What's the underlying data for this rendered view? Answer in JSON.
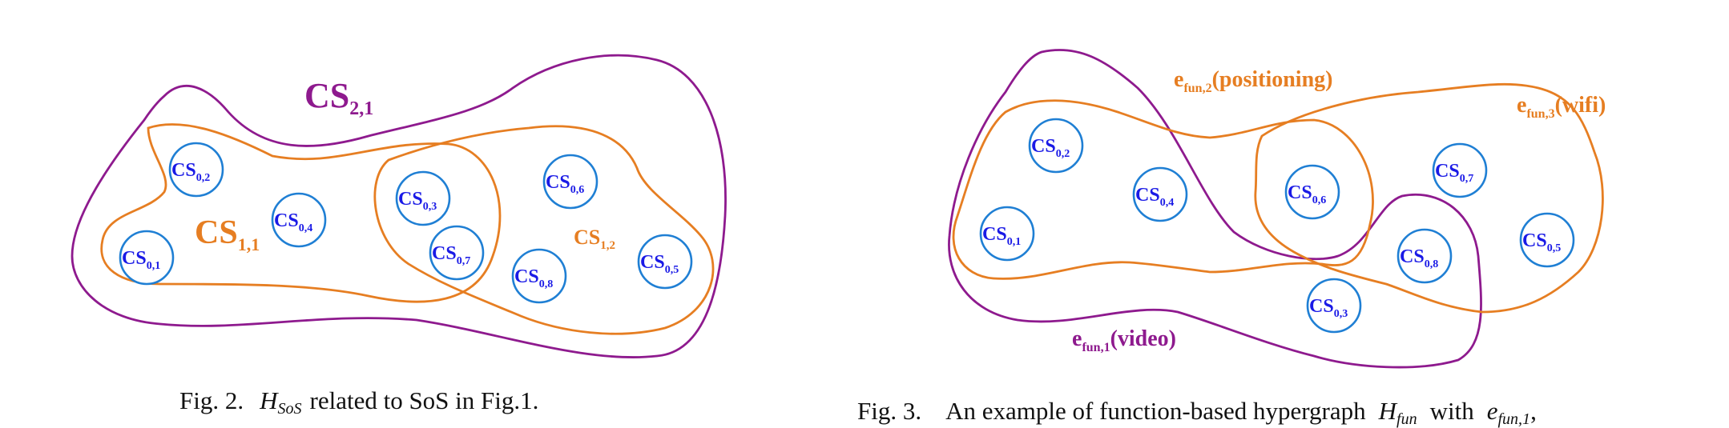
{
  "fig2": {
    "hyperedges": {
      "cs21": {
        "base": "CS",
        "sub": "2,1"
      },
      "cs11": {
        "base": "CS",
        "sub": "1,1"
      },
      "cs12": {
        "base": "CS",
        "sub": "1,2"
      }
    },
    "nodes": {
      "n1": {
        "base": "CS",
        "sub": "0,1"
      },
      "n2": {
        "base": "CS",
        "sub": "0,2"
      },
      "n3": {
        "base": "CS",
        "sub": "0,3"
      },
      "n4": {
        "base": "CS",
        "sub": "0,4"
      },
      "n5": {
        "base": "CS",
        "sub": "0,5"
      },
      "n6": {
        "base": "CS",
        "sub": "0,6"
      },
      "n7": {
        "base": "CS",
        "sub": "0,7"
      },
      "n8": {
        "base": "CS",
        "sub": "0,8"
      }
    },
    "caption": {
      "prefix": "Fig. 2.",
      "math_base": "H",
      "math_sub": "SoS",
      "text": "related to SoS in Fig.1."
    }
  },
  "fig3": {
    "hyperedges": {
      "video": {
        "base": "e",
        "sub": "fun,1",
        "name": "(video)"
      },
      "positioning": {
        "base": "e",
        "sub": "fun,2",
        "name": "(positioning)"
      },
      "wifi": {
        "base": "e",
        "sub": "fun,3",
        "name": "(wifi)"
      }
    },
    "nodes": {
      "n1": {
        "base": "CS",
        "sub": "0,1"
      },
      "n2": {
        "base": "CS",
        "sub": "0,2"
      },
      "n3": {
        "base": "CS",
        "sub": "0,3"
      },
      "n4": {
        "base": "CS",
        "sub": "0,4"
      },
      "n5": {
        "base": "CS",
        "sub": "0,5"
      },
      "n6": {
        "base": "CS",
        "sub": "0,6"
      },
      "n7": {
        "base": "CS",
        "sub": "0,7"
      },
      "n8": {
        "base": "CS",
        "sub": "0,8"
      }
    },
    "caption": {
      "prefix": "Fig. 3.",
      "text1": "An example of function-based hypergraph",
      "math1_base": "H",
      "math1_sub": "fun",
      "text2": "with",
      "math2_base": "e",
      "math2_sub": "fun,1",
      "trail": ","
    }
  },
  "colors": {
    "node_stroke": "#1f7fd4",
    "node_text": "#1a1ae6",
    "orange": "#e67e22",
    "purple": "#8e1a8e"
  }
}
